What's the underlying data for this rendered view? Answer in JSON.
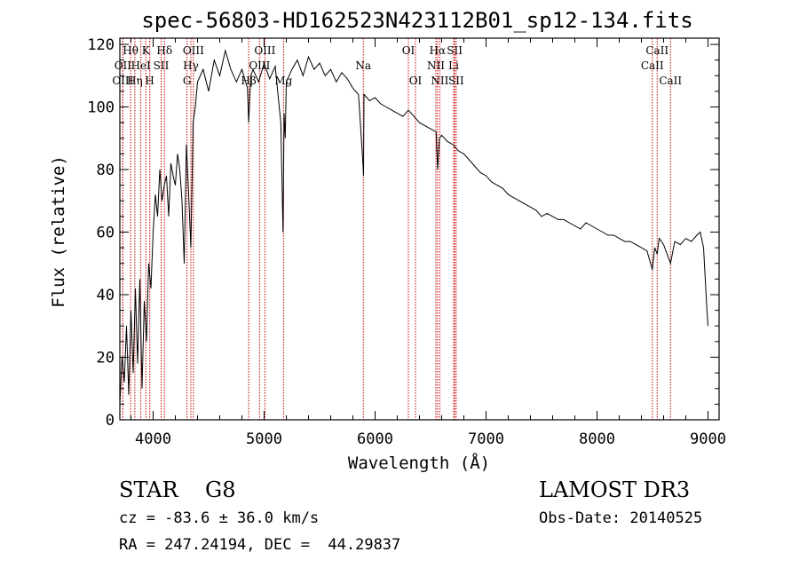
{
  "chart_data": {
    "type": "line",
    "title": "spec-56803-HD162523N423112B01_sp12-134.fits",
    "xlabel": "Wavelength (Å)",
    "ylabel": "Flux (relative)",
    "xlim": [
      3700,
      9100
    ],
    "ylim": [
      0,
      122
    ],
    "xticks": [
      4000,
      5000,
      6000,
      7000,
      8000,
      9000
    ],
    "yticks": [
      0,
      20,
      40,
      60,
      80,
      100,
      120
    ],
    "series": [
      {
        "name": "spectrum",
        "x": [
          3700,
          3720,
          3740,
          3760,
          3780,
          3800,
          3820,
          3840,
          3860,
          3880,
          3900,
          3920,
          3940,
          3960,
          3980,
          4000,
          4020,
          4040,
          4060,
          4080,
          4100,
          4120,
          4140,
          4160,
          4180,
          4200,
          4220,
          4240,
          4260,
          4280,
          4300,
          4320,
          4340,
          4360,
          4380,
          4400,
          4450,
          4500,
          4550,
          4600,
          4650,
          4700,
          4750,
          4800,
          4850,
          4861,
          4880,
          4900,
          4950,
          5000,
          5050,
          5100,
          5150,
          5170,
          5180,
          5190,
          5200,
          5250,
          5300,
          5350,
          5400,
          5450,
          5500,
          5550,
          5600,
          5650,
          5700,
          5750,
          5800,
          5850,
          5890,
          5896,
          5900,
          5950,
          6000,
          6050,
          6100,
          6150,
          6200,
          6250,
          6300,
          6350,
          6400,
          6450,
          6500,
          6550,
          6563,
          6580,
          6600,
          6650,
          6700,
          6750,
          6800,
          6850,
          6900,
          6950,
          7000,
          7050,
          7100,
          7150,
          7200,
          7250,
          7300,
          7350,
          7400,
          7450,
          7500,
          7550,
          7600,
          7650,
          7700,
          7750,
          7800,
          7850,
          7900,
          7950,
          8000,
          8050,
          8100,
          8150,
          8200,
          8250,
          8300,
          8350,
          8400,
          8450,
          8498,
          8520,
          8542,
          8560,
          8600,
          8662,
          8700,
          8750,
          8800,
          8850,
          8900,
          8930,
          8960,
          8990,
          9000
        ],
        "values": [
          5,
          20,
          12,
          30,
          8,
          35,
          15,
          42,
          18,
          45,
          10,
          38,
          25,
          50,
          42,
          60,
          72,
          65,
          80,
          70,
          75,
          78,
          65,
          82,
          78,
          75,
          85,
          80,
          70,
          50,
          88,
          72,
          55,
          95,
          100,
          108,
          112,
          105,
          115,
          110,
          118,
          112,
          108,
          112,
          106,
          95,
          110,
          112,
          108,
          114,
          109,
          113,
          95,
          60,
          98,
          90,
          108,
          112,
          115,
          110,
          116,
          112,
          114,
          110,
          112,
          108,
          111,
          109,
          106,
          104,
          82,
          78,
          104,
          102,
          103,
          101,
          100,
          99,
          98,
          97,
          99,
          97,
          95,
          94,
          93,
          92,
          80,
          90,
          91,
          89,
          88,
          86,
          85,
          83,
          81,
          79,
          78,
          76,
          75,
          74,
          72,
          71,
          70,
          69,
          68,
          67,
          65,
          66,
          65,
          64,
          64,
          63,
          62,
          61,
          63,
          62,
          61,
          60,
          59,
          59,
          58,
          57,
          57,
          56,
          55,
          54,
          48,
          55,
          53,
          58,
          56,
          50,
          57,
          56,
          58,
          57,
          59,
          60,
          55,
          35,
          30
        ]
      }
    ],
    "spectral_lines": [
      {
        "label": "Hθ",
        "x": 3797,
        "row": 1
      },
      {
        "label": "OII",
        "x": 3727,
        "row": 2
      },
      {
        "label": "OIII",
        "x": 3727,
        "row": 3
      },
      {
        "label": "HeI",
        "x": 3889,
        "row": 2
      },
      {
        "label": "Hη",
        "x": 3835,
        "row": 3
      },
      {
        "label": "K",
        "x": 3934,
        "row": 1
      },
      {
        "label": "SII",
        "x": 4072,
        "row": 2
      },
      {
        "label": "H",
        "x": 3969,
        "row": 3
      },
      {
        "label": "Hδ",
        "x": 4102,
        "row": 1
      },
      {
        "label": "OIII",
        "x": 4363,
        "row": 1
      },
      {
        "label": "Hγ",
        "x": 4340,
        "row": 2
      },
      {
        "label": "G",
        "x": 4305,
        "row": 3
      },
      {
        "label": "OIII",
        "x": 5007,
        "row": 1
      },
      {
        "label": "OIII",
        "x": 4959,
        "row": 2
      },
      {
        "label": "Hβ",
        "x": 4861,
        "row": 3
      },
      {
        "label": "Mg",
        "x": 5175,
        "row": 3
      },
      {
        "label": "Na",
        "x": 5894,
        "row": 2
      },
      {
        "label": "OI",
        "x": 6300,
        "row": 1
      },
      {
        "label": "OI",
        "x": 6364,
        "row": 3
      },
      {
        "label": "Hα",
        "x": 6563,
        "row": 1
      },
      {
        "label": "SII",
        "x": 6717,
        "row": 1
      },
      {
        "label": "NII",
        "x": 6548,
        "row": 2
      },
      {
        "label": "Li",
        "x": 6708,
        "row": 2
      },
      {
        "label": "NII",
        "x": 6583,
        "row": 3
      },
      {
        "label": "SII",
        "x": 6731,
        "row": 3
      },
      {
        "label": "CaII",
        "x": 8542,
        "row": 1
      },
      {
        "label": "CaII",
        "x": 8498,
        "row": 2
      },
      {
        "label": "CaII",
        "x": 8662,
        "row": 3
      }
    ],
    "colors": {
      "spectrum": "#000000",
      "line_markers": "#cc0000",
      "axes": "#000000"
    }
  },
  "info": {
    "class_line": "STAR    G8",
    "survey": "LAMOST DR3",
    "cz": "cz = -83.6 ± 36.0 km/s",
    "obs_date": "Obs-Date: 20140525",
    "radec": "RA = 247.24194, DEC =  44.29837"
  }
}
